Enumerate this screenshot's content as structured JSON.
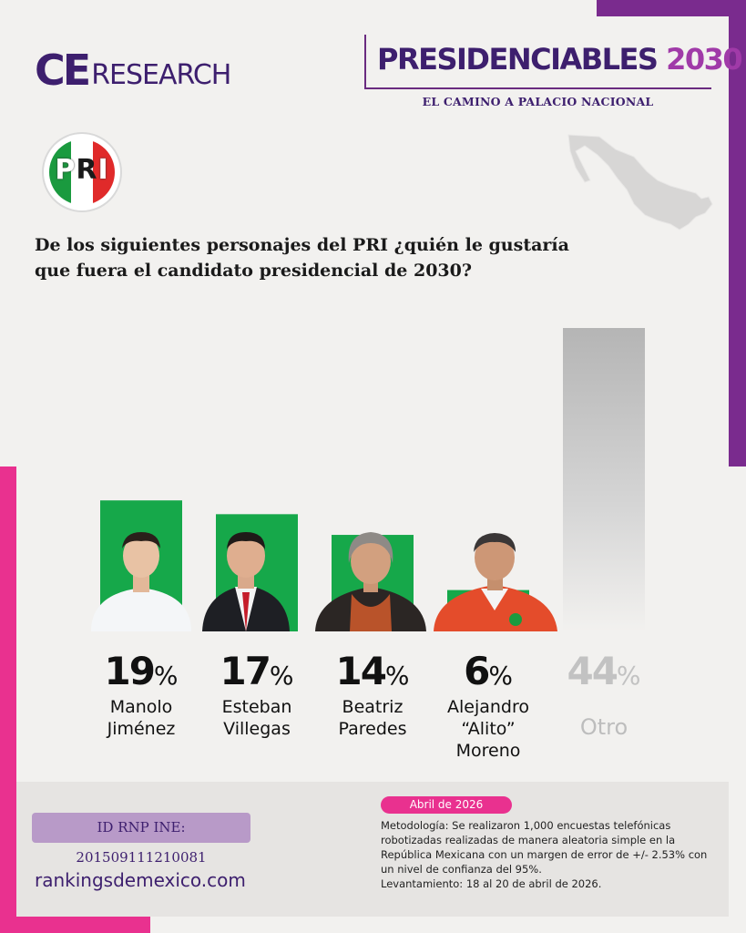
{
  "brand": {
    "logo_ce": "CE",
    "logo_research": "RESEARCH",
    "header_title": "PRESIDENCIABLES",
    "header_year": "2030",
    "header_subtitle": "EL CAMINO A PALACIO NACIONAL"
  },
  "party_logo": {
    "letters": [
      "P",
      "R",
      "I"
    ],
    "colors": {
      "green": "#1a9a3f",
      "white": "#ffffff",
      "red": "#e02a2a"
    }
  },
  "question": "De los siguientes personajes del PRI ¿quién le gustaría que fuera el candidato presidencial de 2030?",
  "chart_data": {
    "type": "bar",
    "categories": [
      "Manolo Jiménez",
      "Esteban Villegas",
      "Beatriz Paredes",
      "Alejandro “Alito” Moreno",
      "Otro"
    ],
    "values": [
      19,
      17,
      14,
      6,
      44
    ],
    "value_suffix": "%",
    "ylim": [
      0,
      44
    ],
    "colors": {
      "candidates": "#16a84a",
      "other": "#b8b8b8"
    },
    "candidates": [
      {
        "pct": "19",
        "name_line1": "Manolo",
        "name_line2": "Jiménez",
        "name_line3": ""
      },
      {
        "pct": "17",
        "name_line1": "Esteban",
        "name_line2": "Villegas",
        "name_line3": ""
      },
      {
        "pct": "14",
        "name_line1": "Beatriz",
        "name_line2": "Paredes",
        "name_line3": ""
      },
      {
        "pct": "6",
        "name_line1": "Alejandro",
        "name_line2": "“Alito”",
        "name_line3": "Moreno"
      },
      {
        "pct": "44",
        "name_line1": "Otro",
        "name_line2": "",
        "name_line3": ""
      }
    ],
    "percent_sign": "%"
  },
  "footer": {
    "rnp": "ID RNP INE: 201509111210081",
    "site": "rankingsdemexico.com",
    "date": "Abril de 2026",
    "methodology": "Metodología: Se realizaron 1,000 encuestas telefónicas robotizadas realizadas de manera aleatoria simple en la República Mexicana con un margen de error de +/- 2.53% con un nivel de confianza del 95%.",
    "fieldwork": "Levantamiento: 18 al 20 de abril de 2026."
  },
  "colors": {
    "purple": "#7a2b8e",
    "dark_purple": "#3d1f6e",
    "pink": "#e9318f",
    "background": "#f2f1ef"
  }
}
